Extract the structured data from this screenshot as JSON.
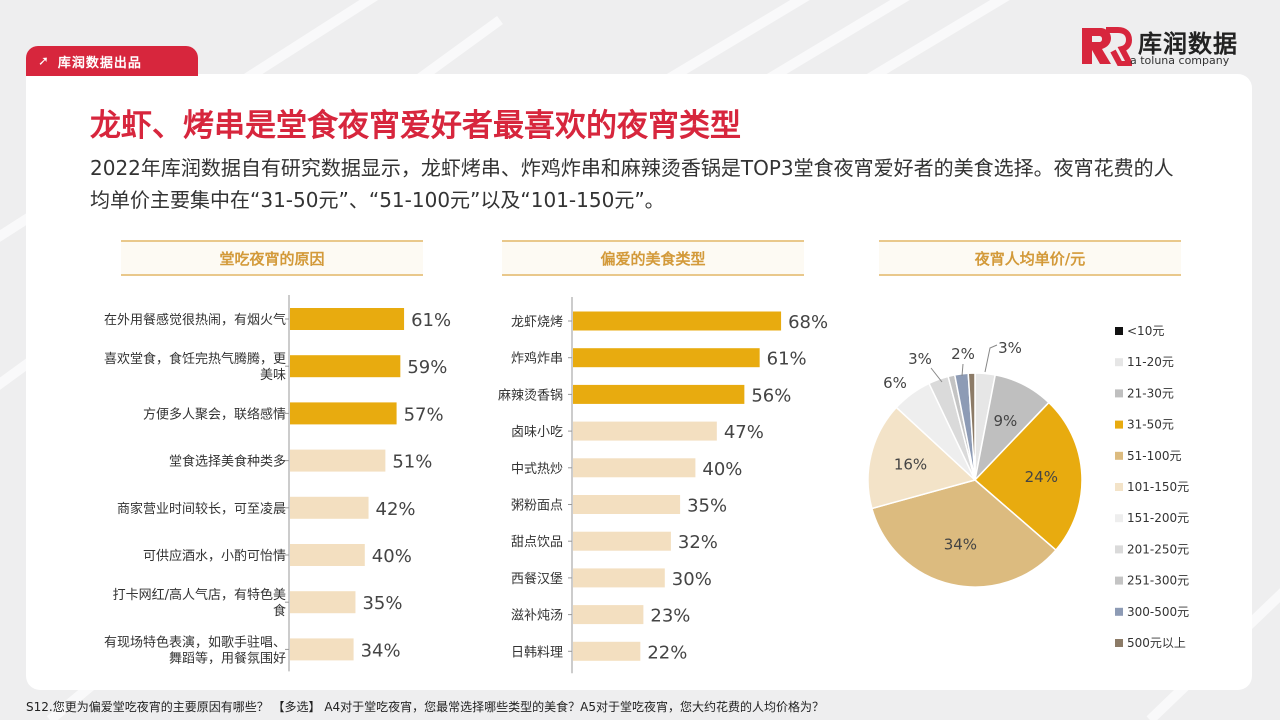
{
  "brand_tag": "库润数据出品",
  "logo": {
    "name": "库润数据",
    "sub": "a toluna company"
  },
  "title": "龙虾、烤串是堂食夜宵爱好者最喜欢的夜宵类型",
  "subtitle": "2022年库润数据自有研究数据显示，龙虾烤串、炸鸡炸串和麻辣烫香锅是TOP3堂食夜宵爱好者的美食选择。夜宵花费的人均单价主要集中在“31-50元”、“51-100元”以及“101-150元”。",
  "footnote": "S12.您更为偏爱堂吃夜宵的主要原因有哪些？ 【多选】 A4对于堂吃夜宵，您最常选择哪些类型的美食？A5对于堂吃夜宵，您大约花费的人均价格为？",
  "colors": {
    "accent_red": "#d7263d",
    "highlight": "#e8ab0f",
    "light": "#f3dfc0",
    "header_text": "#d39a3a"
  },
  "chart_data": [
    {
      "type": "bar",
      "orientation": "horizontal",
      "title": "堂吃夜宵的原因",
      "categories": [
        "在外用餐感觉很热闹，有烟火气",
        "喜欢堂食，食饪完热气腾腾，更美味",
        "方便多人聚会，联络感情",
        "堂食选择美食种类多",
        "商家营业时间较长，可至凌晨",
        "可供应酒水，小酌可怡情",
        "打卡网红/高人气店，有特色美食",
        "有现场特色表演，如歌手驻唱、舞蹈等，用餐氛围好"
      ],
      "values": [
        61,
        59,
        57,
        51,
        42,
        40,
        35,
        34
      ],
      "value_labels": [
        "61%",
        "59%",
        "57%",
        "51%",
        "42%",
        "40%",
        "35%",
        "34%"
      ],
      "highlight_top": 3
    },
    {
      "type": "bar",
      "orientation": "horizontal",
      "title": "偏爱的美食类型",
      "categories": [
        "龙虾烧烤",
        "炸鸡炸串",
        "麻辣烫香锅",
        "卤味小吃",
        "中式热炒",
        "粥粉面点",
        "甜点饮品",
        "西餐汉堡",
        "滋补炖汤",
        "日韩料理"
      ],
      "values": [
        68,
        61,
        56,
        47,
        40,
        35,
        32,
        30,
        23,
        22
      ],
      "value_labels": [
        "68%",
        "61%",
        "56%",
        "47%",
        "40%",
        "35%",
        "32%",
        "30%",
        "23%",
        "22%"
      ],
      "highlight_top": 3
    },
    {
      "type": "pie",
      "title": "夜宵人均单价/元",
      "slices": [
        {
          "label": "<10元",
          "value": 0,
          "value_label": "",
          "color": "#111111"
        },
        {
          "label": "11-20元",
          "value": 3,
          "value_label": "3%",
          "color": "#e6e6e6"
        },
        {
          "label": "21-30元",
          "value": 9,
          "value_label": "9%",
          "color": "#bfbfbf"
        },
        {
          "label": "31-50元",
          "value": 24,
          "value_label": "24%",
          "color": "#e8ab0f"
        },
        {
          "label": "51-100元",
          "value": 34,
          "value_label": "34%",
          "color": "#dcbb7f"
        },
        {
          "label": "101-150元",
          "value": 16,
          "value_label": "16%",
          "color": "#f3e3c8"
        },
        {
          "label": "151-200元",
          "value": 6,
          "value_label": "6%",
          "color": "#eeeeee"
        },
        {
          "label": "201-250元",
          "value": 3,
          "value_label": "3%",
          "color": "#dadada"
        },
        {
          "label": "251-300元",
          "value": 1,
          "value_label": "",
          "color": "#c4c4c4"
        },
        {
          "label": "300-500元",
          "value": 2,
          "value_label": "2%",
          "color": "#8d9bb5"
        },
        {
          "label": "500元以上",
          "value": 1,
          "value_label": "",
          "color": "#8c7b67"
        }
      ],
      "legend": "right"
    }
  ]
}
